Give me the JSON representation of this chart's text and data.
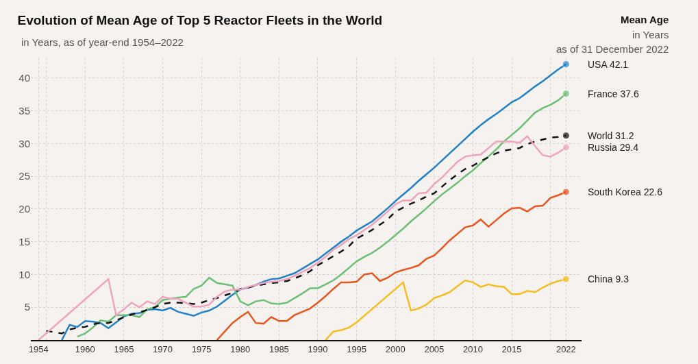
{
  "chart_data": {
    "type": "line",
    "title": "Evolution of Mean Age of Top 5 Reactor Fleets in the World",
    "subtitle": "in Years, as of year-end 1954–2022",
    "annotations": [
      "Mean Age",
      "in Years",
      "as of 31 December 2022"
    ],
    "xlim": [
      1953,
      2024
    ],
    "xticks": [
      1954,
      {
        "value": 1955,
        "label": null
      },
      1960,
      1965,
      1970,
      1975,
      1980,
      1985,
      1990,
      1995,
      2000,
      2005,
      2010,
      2015,
      {
        "value": 2020,
        "label": null
      },
      2022
    ],
    "ylim": [
      0,
      43
    ],
    "yticks": [
      5,
      10,
      15,
      20,
      25,
      30,
      35,
      40
    ],
    "grid": true,
    "legend": false,
    "line_style": "solid",
    "series": [
      {
        "name": "USA",
        "color": "#1f82c8",
        "x": [
          1957,
          1958,
          1959,
          1960,
          1961,
          1962,
          1963,
          1964,
          1965,
          1966,
          1967,
          1968,
          1969,
          1970,
          1971,
          1972,
          1973,
          1974,
          1975,
          1976,
          1977,
          1978,
          1979,
          1980,
          1981,
          1982,
          1983,
          1984,
          1985,
          1986,
          1987,
          1988,
          1989,
          1990,
          1991,
          1992,
          1993,
          1994,
          1995,
          1996,
          1997,
          1998,
          1999,
          2000,
          2001,
          2002,
          2003,
          2004,
          2005,
          2006,
          2007,
          2008,
          2009,
          2010,
          2011,
          2012,
          2013,
          2014,
          2015,
          2016,
          2017,
          2018,
          2019,
          2020,
          2021,
          2022
        ],
        "values": [
          0,
          2.3,
          2.0,
          2.9,
          2.8,
          2.6,
          1.8,
          2.7,
          3.6,
          4.0,
          4.1,
          4.6,
          4.7,
          4.5,
          4.9,
          4.3,
          4.0,
          3.7,
          4.2,
          4.5,
          5.1,
          6.0,
          6.9,
          7.7,
          8.0,
          8.4,
          8.9,
          9.3,
          9.4,
          9.8,
          10.2,
          10.9,
          11.6,
          12.3,
          13.2,
          14.1,
          15.0,
          15.8,
          16.7,
          17.4,
          18.1,
          19.1,
          20.1,
          21.2,
          22.2,
          23.2,
          24.3,
          25.3,
          26.3,
          27.4,
          28.5,
          29.6,
          30.7,
          31.8,
          32.8,
          33.7,
          34.5,
          35.4,
          36.3,
          36.9,
          37.8,
          38.7,
          39.5,
          40.4,
          41.3,
          42.1
        ],
        "value_labels": [
          null,
          null,
          null,
          null,
          null,
          null,
          null,
          null,
          null,
          null,
          null,
          null,
          null,
          null,
          null,
          null,
          null,
          null,
          null,
          null,
          null,
          null,
          null,
          null,
          null,
          null,
          null,
          null,
          null,
          null,
          null,
          null,
          null,
          null,
          null,
          null,
          null,
          null,
          null,
          null,
          null,
          null,
          null,
          null,
          null,
          null,
          null,
          null,
          null,
          null,
          null,
          null,
          null,
          null,
          null,
          null,
          null,
          null,
          null,
          null,
          null,
          null,
          null,
          null,
          null,
          "42.1"
        ]
      },
      {
        "name": "France",
        "color": "#6cbf74",
        "x": [
          1959,
          1960,
          1961,
          1962,
          1963,
          1964,
          1965,
          1966,
          1967,
          1968,
          1969,
          1970,
          1971,
          1972,
          1973,
          1974,
          1975,
          1976,
          1977,
          1978,
          1979,
          1980,
          1981,
          1982,
          1983,
          1984,
          1985,
          1986,
          1987,
          1988,
          1989,
          1990,
          1991,
          1992,
          1993,
          1994,
          1995,
          1996,
          1997,
          1998,
          1999,
          2000,
          2001,
          2002,
          2003,
          2004,
          2005,
          2006,
          2007,
          2008,
          2009,
          2010,
          2011,
          2012,
          2013,
          2014,
          2015,
          2016,
          2017,
          2018,
          2019,
          2020,
          2021,
          2022
        ],
        "values": [
          0.5,
          1.0,
          1.9,
          3.0,
          2.8,
          3.8,
          3.8,
          3.8,
          3.5,
          4.7,
          5.0,
          6.1,
          6.3,
          6.5,
          6.6,
          7.8,
          8.3,
          9.5,
          8.7,
          8.5,
          8.3,
          5.9,
          5.3,
          5.9,
          6.1,
          5.6,
          5.5,
          5.7,
          6.4,
          7.1,
          7.9,
          7.9,
          8.5,
          9.1,
          10.0,
          11.0,
          12.0,
          12.7,
          13.3,
          14.1,
          15.0,
          16.0,
          17.0,
          18.1,
          19.1,
          20.1,
          21.2,
          22.2,
          23.1,
          24.0,
          25.0,
          25.9,
          27.0,
          28.0,
          29.1,
          30.3,
          31.3,
          32.3,
          33.5,
          34.7,
          35.4,
          35.9,
          36.6,
          37.6
        ],
        "value_labels": [
          null,
          null,
          null,
          null,
          null,
          null,
          null,
          null,
          null,
          null,
          null,
          null,
          null,
          null,
          null,
          null,
          null,
          null,
          null,
          null,
          null,
          null,
          null,
          null,
          null,
          null,
          null,
          null,
          null,
          null,
          null,
          null,
          null,
          null,
          null,
          null,
          null,
          null,
          null,
          null,
          null,
          null,
          null,
          null,
          null,
          null,
          null,
          null,
          null,
          null,
          null,
          null,
          null,
          null,
          null,
          null,
          null,
          null,
          null,
          null,
          null,
          null,
          null,
          "37.6"
        ]
      },
      {
        "name": "World",
        "color": "#111111",
        "line_style": "dashed",
        "x": [
          1955,
          1956,
          1957,
          1958,
          1959,
          1960,
          1961,
          1962,
          1963,
          1964,
          1965,
          1966,
          1967,
          1968,
          1969,
          1970,
          1971,
          1972,
          1973,
          1974,
          1975,
          1976,
          1977,
          1978,
          1979,
          1980,
          1981,
          1982,
          1983,
          1984,
          1985,
          1986,
          1987,
          1988,
          1989,
          1990,
          1991,
          1992,
          1993,
          1994,
          1995,
          1996,
          1997,
          1998,
          1999,
          2000,
          2001,
          2002,
          2003,
          2004,
          2005,
          2006,
          2007,
          2008,
          2009,
          2010,
          2011,
          2012,
          2013,
          2014,
          2015,
          2016,
          2017,
          2018,
          2019,
          2020,
          2021,
          2022
        ],
        "values": [
          1.4,
          1.2,
          1.0,
          1.6,
          1.9,
          2.0,
          2.4,
          2.6,
          2.6,
          3.0,
          3.5,
          3.9,
          4.2,
          4.6,
          5.0,
          5.5,
          5.7,
          5.7,
          5.6,
          5.5,
          5.7,
          6.1,
          6.4,
          6.8,
          7.2,
          7.8,
          8.0,
          8.3,
          8.5,
          8.7,
          8.8,
          9.0,
          9.4,
          9.9,
          10.5,
          11.4,
          12.1,
          12.8,
          13.5,
          14.3,
          15.5,
          16.1,
          16.8,
          17.6,
          18.4,
          19.6,
          20.2,
          20.8,
          21.3,
          21.9,
          22.4,
          23.4,
          24.4,
          25.3,
          26.1,
          26.6,
          27.3,
          27.9,
          28.5,
          28.9,
          29.1,
          29.3,
          29.9,
          30.3,
          30.6,
          30.9,
          31.0,
          31.2
        ],
        "value_labels": [
          null,
          null,
          null,
          null,
          null,
          null,
          null,
          null,
          null,
          null,
          null,
          null,
          null,
          null,
          null,
          null,
          null,
          null,
          null,
          null,
          null,
          null,
          null,
          null,
          null,
          null,
          null,
          null,
          null,
          null,
          null,
          null,
          null,
          null,
          null,
          null,
          null,
          null,
          null,
          null,
          null,
          null,
          null,
          null,
          null,
          null,
          null,
          null,
          null,
          null,
          null,
          null,
          null,
          null,
          null,
          null,
          null,
          null,
          null,
          null,
          null,
          null,
          null,
          null,
          null,
          null,
          null,
          "31.2"
        ]
      },
      {
        "name": "Russia",
        "color": "#f0a3bd",
        "x": [
          1954,
          1963,
          1964,
          1965,
          1966,
          1967,
          1968,
          1969,
          1970,
          1971,
          1972,
          1973,
          1974,
          1975,
          1976,
          1977,
          1978,
          1979,
          1980,
          1981,
          1982,
          1983,
          1984,
          1985,
          1986,
          1987,
          1988,
          1989,
          1990,
          1991,
          1992,
          1993,
          1994,
          1995,
          1996,
          1997,
          1998,
          1999,
          2000,
          2001,
          2002,
          2003,
          2004,
          2005,
          2006,
          2007,
          2008,
          2009,
          2010,
          2011,
          2012,
          2013,
          2014,
          2015,
          2016,
          2017,
          2018,
          2019,
          2020,
          2021,
          2022
        ],
        "values": [
          0,
          9.3,
          3.8,
          4.7,
          5.7,
          5.0,
          5.9,
          5.5,
          6.6,
          6.3,
          6.3,
          5.7,
          5.1,
          5.1,
          5.4,
          6.6,
          7.4,
          7.7,
          7.7,
          8.1,
          8.4,
          8.7,
          8.9,
          9.0,
          9.3,
          9.8,
          10.4,
          11.0,
          11.8,
          12.7,
          13.8,
          14.5,
          15.4,
          16.0,
          16.8,
          17.6,
          18.6,
          19.6,
          20.7,
          21.3,
          21.3,
          22.4,
          22.5,
          23.8,
          24.8,
          26.0,
          27.2,
          28.0,
          28.2,
          28.3,
          29.3,
          30.3,
          30.3,
          30.3,
          30.1,
          31.1,
          29.6,
          28.2,
          28.0,
          28.6,
          29.4
        ],
        "value_labels": [
          null,
          null,
          null,
          null,
          null,
          null,
          null,
          null,
          null,
          null,
          null,
          null,
          null,
          null,
          null,
          null,
          null,
          null,
          null,
          null,
          null,
          null,
          null,
          null,
          null,
          null,
          null,
          null,
          null,
          null,
          null,
          null,
          null,
          null,
          null,
          null,
          null,
          null,
          null,
          null,
          null,
          null,
          null,
          null,
          null,
          null,
          null,
          null,
          null,
          null,
          null,
          null,
          null,
          null,
          null,
          null,
          null,
          null,
          null,
          null,
          "29.4"
        ]
      },
      {
        "name": "South Korea",
        "color": "#e8561e",
        "x": [
          1977,
          1978,
          1979,
          1980,
          1981,
          1982,
          1983,
          1984,
          1985,
          1986,
          1987,
          1988,
          1989,
          1990,
          1991,
          1992,
          1993,
          1994,
          1995,
          1996,
          1997,
          1998,
          1999,
          2000,
          2001,
          2002,
          2003,
          2004,
          2005,
          2006,
          2007,
          2008,
          2009,
          2010,
          2011,
          2012,
          2013,
          2014,
          2015,
          2016,
          2017,
          2018,
          2019,
          2020,
          2021,
          2022
        ],
        "values": [
          0,
          1.3,
          2.6,
          3.5,
          4.3,
          2.6,
          2.5,
          3.5,
          2.9,
          2.9,
          3.8,
          4.3,
          4.8,
          5.7,
          6.7,
          7.8,
          8.8,
          8.8,
          8.9,
          10.0,
          10.2,
          9.0,
          9.5,
          10.3,
          10.7,
          11.0,
          11.4,
          12.4,
          12.9,
          14.0,
          15.2,
          16.2,
          17.2,
          17.5,
          18.4,
          17.3,
          18.3,
          19.3,
          20.1,
          20.2,
          19.6,
          20.4,
          20.5,
          21.7,
          22.1,
          22.6
        ],
        "value_labels": [
          null,
          null,
          null,
          null,
          null,
          null,
          null,
          null,
          null,
          null,
          null,
          null,
          null,
          null,
          null,
          null,
          null,
          null,
          null,
          null,
          null,
          null,
          null,
          null,
          null,
          null,
          null,
          null,
          null,
          null,
          null,
          null,
          null,
          null,
          null,
          null,
          null,
          null,
          null,
          null,
          null,
          null,
          null,
          null,
          null,
          "22.6"
        ]
      },
      {
        "name": "China",
        "color": "#f5bd1f",
        "x": [
          1991,
          1992,
          1993,
          1994,
          1995,
          2001,
          2002,
          2003,
          2004,
          2005,
          2006,
          2007,
          2008,
          2009,
          2010,
          2011,
          2012,
          2013,
          2014,
          2015,
          2016,
          2017,
          2018,
          2019,
          2020,
          2021,
          2022
        ],
        "values": [
          0,
          1.3,
          1.5,
          1.9,
          2.7,
          8.8,
          4.5,
          4.8,
          5.4,
          6.4,
          6.8,
          7.3,
          8.2,
          9.1,
          8.8,
          8.1,
          8.5,
          8.2,
          8.1,
          7.0,
          7.0,
          7.5,
          7.3,
          8.0,
          8.6,
          9.0,
          9.3
        ],
        "value_labels": [
          null,
          null,
          null,
          null,
          null,
          null,
          null,
          null,
          null,
          null,
          null,
          null,
          null,
          null,
          null,
          null,
          null,
          null,
          null,
          null,
          null,
          null,
          null,
          null,
          null,
          null,
          "9.3"
        ]
      }
    ]
  }
}
